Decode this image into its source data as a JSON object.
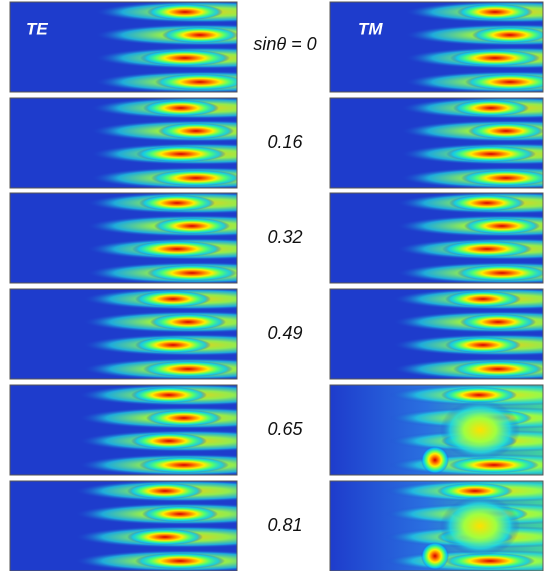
{
  "columns": [
    "TE",
    "TM"
  ],
  "rows": [
    "sinθ = 0",
    "0.16",
    "0.32",
    "0.49",
    "0.65",
    "0.81"
  ]
}
